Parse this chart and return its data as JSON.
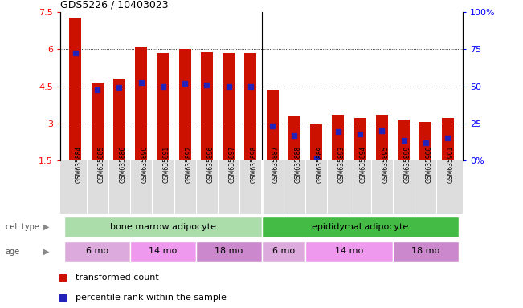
{
  "title": "GDS5226 / 10403023",
  "samples": [
    "GSM635884",
    "GSM635885",
    "GSM635886",
    "GSM635890",
    "GSM635891",
    "GSM635892",
    "GSM635896",
    "GSM635897",
    "GSM635898",
    "GSM635887",
    "GSM635888",
    "GSM635889",
    "GSM635893",
    "GSM635894",
    "GSM635895",
    "GSM635899",
    "GSM635900",
    "GSM635901"
  ],
  "bar_heights": [
    7.3,
    4.65,
    4.8,
    6.1,
    5.85,
    6.0,
    5.9,
    5.85,
    5.85,
    4.35,
    3.3,
    2.95,
    3.35,
    3.2,
    3.35,
    3.15,
    3.05,
    3.2
  ],
  "blue_markers": [
    5.85,
    4.35,
    4.45,
    4.65,
    4.5,
    4.6,
    4.55,
    4.5,
    4.5,
    2.9,
    2.5,
    1.55,
    2.65,
    2.55,
    2.7,
    2.3,
    2.2,
    2.4
  ],
  "ymin": 1.5,
  "ymax": 7.5,
  "yticks": [
    1.5,
    3.0,
    4.5,
    6.0,
    7.5
  ],
  "ytick_labels": [
    "1.5",
    "3",
    "4.5",
    "6",
    "7.5"
  ],
  "y2ticks": [
    0,
    25,
    50,
    75,
    100
  ],
  "y2tick_labels": [
    "0%",
    "25",
    "50",
    "75",
    "100%"
  ],
  "bar_color": "#cc1100",
  "blue_color": "#2222bb",
  "bg_label_color": "#cccccc",
  "cell_type_groups": [
    {
      "label": "bone marrow adipocyte",
      "start": 0,
      "end": 8,
      "color": "#aaddaa"
    },
    {
      "label": "epididymal adipocyte",
      "start": 9,
      "end": 17,
      "color": "#44bb44"
    }
  ],
  "age_groups": [
    {
      "label": "6 mo",
      "start": 0,
      "end": 2,
      "color": "#ddaadd"
    },
    {
      "label": "14 mo",
      "start": 3,
      "end": 5,
      "color": "#ee99ee"
    },
    {
      "label": "18 mo",
      "start": 6,
      "end": 8,
      "color": "#cc88cc"
    },
    {
      "label": "6 mo",
      "start": 9,
      "end": 10,
      "color": "#ddaadd"
    },
    {
      "label": "14 mo",
      "start": 11,
      "end": 14,
      "color": "#ee99ee"
    },
    {
      "label": "18 mo",
      "start": 15,
      "end": 17,
      "color": "#cc88cc"
    }
  ],
  "legend_entries": [
    {
      "label": "transformed count",
      "color": "#cc1100"
    },
    {
      "label": "percentile rank within the sample",
      "color": "#2222bb"
    }
  ],
  "cell_type_label": "cell type",
  "age_label": "age",
  "separator_index": 8.5
}
